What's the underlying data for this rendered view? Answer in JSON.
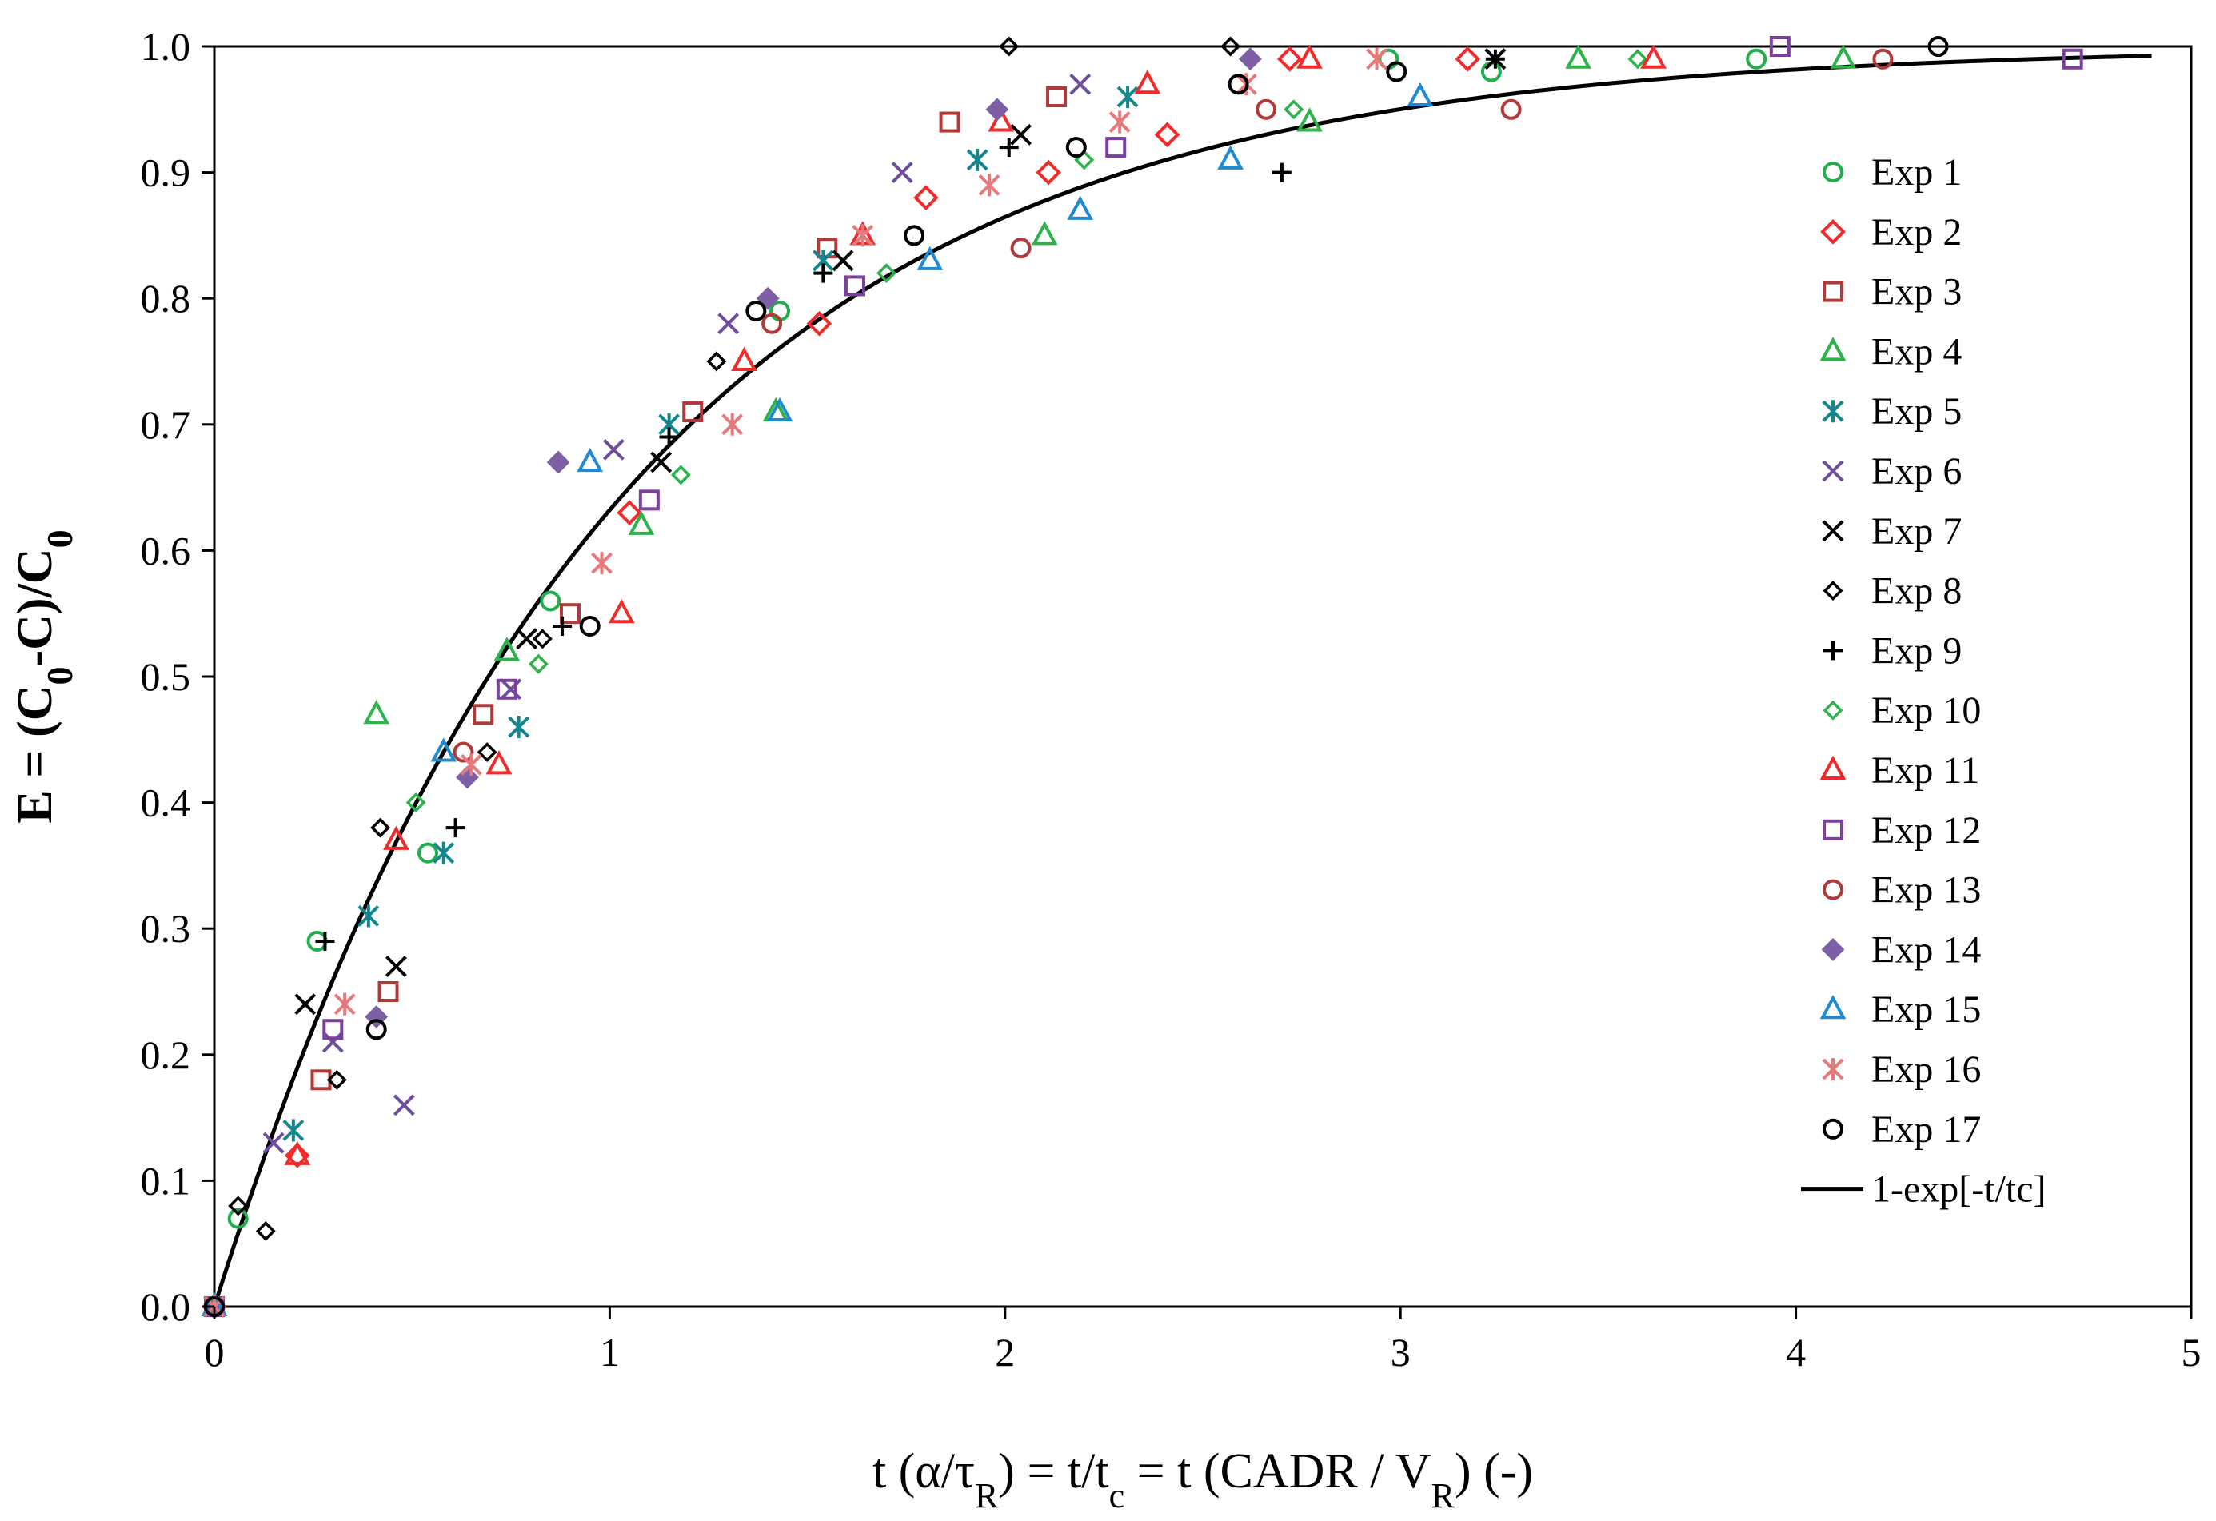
{
  "chart_data": {
    "type": "scatter",
    "title": "",
    "xlabel": "t (α/τR) = t/tc = t (CADR / VR) (-)",
    "xlabel_parts": {
      "a": "t (α/τ",
      "b": "R",
      "c": ") = t/t",
      "d": "c",
      "e": " = t (CADR / V",
      "f": "R",
      "g": ") (-)"
    },
    "ylabel": "E = (C0-C)/C0",
    "ylabel_parts": {
      "a": "E = (C",
      "b": "0",
      "c": "-C)/C",
      "d": "0"
    },
    "xlim": [
      0,
      5
    ],
    "ylim": [
      0,
      1.0
    ],
    "xticks": [
      "0",
      "1",
      "2",
      "3",
      "4",
      "5"
    ],
    "yticks": [
      "0.0",
      "0.1",
      "0.2",
      "0.3",
      "0.4",
      "0.5",
      "0.6",
      "0.7",
      "0.8",
      "0.9",
      "1.0"
    ],
    "grid": false,
    "legend_position": "right",
    "fit": {
      "name": "1-exp[-t/tc]",
      "color": "#000000",
      "x_max": 4.9
    },
    "series": [
      {
        "name": "Exp 1",
        "marker": "circle",
        "color": "#1fb04b",
        "points": [
          [
            0,
            0
          ],
          [
            0.06,
            0.07
          ],
          [
            0.26,
            0.29
          ],
          [
            0.54,
            0.36
          ],
          [
            0.85,
            0.56
          ],
          [
            1.43,
            0.79
          ],
          [
            2.97,
            0.99
          ],
          [
            3.23,
            0.98
          ],
          [
            3.9,
            0.99
          ]
        ]
      },
      {
        "name": "Exp 2",
        "marker": "diamond",
        "color": "#f22a2a",
        "points": [
          [
            0,
            0
          ],
          [
            0.21,
            0.12
          ],
          [
            1.05,
            0.63
          ],
          [
            1.53,
            0.78
          ],
          [
            1.8,
            0.88
          ],
          [
            2.11,
            0.9
          ],
          [
            2.41,
            0.93
          ],
          [
            2.72,
            0.99
          ],
          [
            3.17,
            0.99
          ]
        ]
      },
      {
        "name": "Exp 3",
        "marker": "square",
        "color": "#b0393a",
        "points": [
          [
            0,
            0
          ],
          [
            0.27,
            0.18
          ],
          [
            0.44,
            0.25
          ],
          [
            0.68,
            0.47
          ],
          [
            0.9,
            0.55
          ],
          [
            1.21,
            0.71
          ],
          [
            1.55,
            0.84
          ],
          [
            1.86,
            0.94
          ],
          [
            2.13,
            0.96
          ]
        ]
      },
      {
        "name": "Exp 4",
        "marker": "triangle",
        "color": "#2cb34a",
        "points": [
          [
            0,
            0
          ],
          [
            0.41,
            0.47
          ],
          [
            0.74,
            0.52
          ],
          [
            1.08,
            0.62
          ],
          [
            1.42,
            0.71
          ],
          [
            2.1,
            0.85
          ],
          [
            2.77,
            0.94
          ],
          [
            3.45,
            0.99
          ],
          [
            4.12,
            0.99
          ]
        ]
      },
      {
        "name": "Exp 5",
        "marker": "asterisk",
        "color": "#14878e",
        "points": [
          [
            0,
            0
          ],
          [
            0.2,
            0.14
          ],
          [
            0.39,
            0.31
          ],
          [
            0.58,
            0.36
          ],
          [
            0.77,
            0.46
          ],
          [
            1.15,
            0.7
          ],
          [
            1.54,
            0.83
          ],
          [
            1.93,
            0.91
          ],
          [
            2.31,
            0.96
          ]
        ]
      },
      {
        "name": "Exp 6",
        "marker": "x",
        "color": "#6e4e9c",
        "points": [
          [
            0,
            0
          ],
          [
            0.15,
            0.13
          ],
          [
            0.3,
            0.21
          ],
          [
            0.48,
            0.16
          ],
          [
            0.75,
            0.49
          ],
          [
            1.01,
            0.68
          ],
          [
            1.3,
            0.78
          ],
          [
            1.74,
            0.9
          ],
          [
            2.19,
            0.97
          ],
          [
            3.24,
            0.99
          ]
        ]
      },
      {
        "name": "Exp 7",
        "marker": "x",
        "color": "#000000",
        "points": [
          [
            0,
            0
          ],
          [
            0.23,
            0.24
          ],
          [
            0.46,
            0.27
          ],
          [
            0.79,
            0.53
          ],
          [
            1.13,
            0.67
          ],
          [
            1.59,
            0.83
          ],
          [
            2.04,
            0.93
          ],
          [
            3.24,
            0.99
          ]
        ]
      },
      {
        "name": "Exp 8",
        "marker": "diamond-small",
        "color": "#000000",
        "points": [
          [
            0,
            0
          ],
          [
            0.06,
            0.08
          ],
          [
            0.13,
            0.06
          ],
          [
            0.31,
            0.18
          ],
          [
            0.42,
            0.38
          ],
          [
            0.69,
            0.44
          ],
          [
            0.83,
            0.53
          ],
          [
            1.27,
            0.75
          ],
          [
            2.01,
            1.0
          ],
          [
            2.57,
            1.0
          ]
        ]
      },
      {
        "name": "Exp 9",
        "marker": "plus",
        "color": "#000000",
        "points": [
          [
            0,
            0
          ],
          [
            0.28,
            0.29
          ],
          [
            0.61,
            0.38
          ],
          [
            0.88,
            0.54
          ],
          [
            1.15,
            0.69
          ],
          [
            1.54,
            0.82
          ],
          [
            2.01,
            0.92
          ],
          [
            2.7,
            0.9
          ],
          [
            3.24,
            0.99
          ]
        ]
      },
      {
        "name": "Exp 10",
        "marker": "diamond-small",
        "color": "#2cb34a",
        "points": [
          [
            0,
            0
          ],
          [
            0.51,
            0.4
          ],
          [
            0.82,
            0.51
          ],
          [
            1.18,
            0.66
          ],
          [
            1.7,
            0.82
          ],
          [
            2.2,
            0.91
          ],
          [
            2.73,
            0.95
          ],
          [
            3.6,
            0.99
          ]
        ]
      },
      {
        "name": "Exp 11",
        "marker": "triangle",
        "color": "#f22a2a",
        "points": [
          [
            0,
            0
          ],
          [
            0.21,
            0.12
          ],
          [
            0.46,
            0.37
          ],
          [
            0.72,
            0.43
          ],
          [
            1.03,
            0.55
          ],
          [
            1.34,
            0.75
          ],
          [
            1.64,
            0.85
          ],
          [
            1.99,
            0.94
          ],
          [
            2.36,
            0.97
          ],
          [
            2.77,
            0.99
          ],
          [
            3.64,
            0.99
          ]
        ]
      },
      {
        "name": "Exp 12",
        "marker": "square",
        "color": "#7b3fa0",
        "points": [
          [
            0,
            0
          ],
          [
            0.3,
            0.22
          ],
          [
            0.74,
            0.49
          ],
          [
            1.1,
            0.64
          ],
          [
            1.62,
            0.81
          ],
          [
            2.28,
            0.92
          ],
          [
            3.96,
            1.0
          ],
          [
            4.7,
            0.99
          ]
        ]
      },
      {
        "name": "Exp 13",
        "marker": "circle",
        "color": "#b0393a",
        "points": [
          [
            0,
            0
          ],
          [
            0.63,
            0.44
          ],
          [
            1.41,
            0.78
          ],
          [
            2.04,
            0.84
          ],
          [
            2.66,
            0.95
          ],
          [
            3.28,
            0.95
          ],
          [
            4.22,
            0.99
          ]
        ]
      },
      {
        "name": "Exp 14",
        "marker": "diamond-filled",
        "color": "#7d5fa6",
        "points": [
          [
            0,
            0
          ],
          [
            0.41,
            0.23
          ],
          [
            0.64,
            0.42
          ],
          [
            0.87,
            0.67
          ],
          [
            1.4,
            0.8
          ],
          [
            1.98,
            0.95
          ],
          [
            2.62,
            0.99
          ]
        ]
      },
      {
        "name": "Exp 15",
        "marker": "triangle",
        "color": "#1f8ad4",
        "points": [
          [
            0,
            0
          ],
          [
            0.58,
            0.44
          ],
          [
            0.95,
            0.67
          ],
          [
            1.43,
            0.71
          ],
          [
            1.81,
            0.83
          ],
          [
            2.19,
            0.87
          ],
          [
            2.57,
            0.91
          ],
          [
            3.05,
            0.96
          ]
        ]
      },
      {
        "name": "Exp 16",
        "marker": "asterisk",
        "color": "#e8797b",
        "points": [
          [
            0,
            0
          ],
          [
            0.33,
            0.24
          ],
          [
            0.65,
            0.43
          ],
          [
            0.98,
            0.59
          ],
          [
            1.31,
            0.7
          ],
          [
            1.64,
            0.85
          ],
          [
            1.96,
            0.89
          ],
          [
            2.29,
            0.94
          ],
          [
            2.61,
            0.97
          ],
          [
            2.94,
            0.99
          ]
        ]
      },
      {
        "name": "Exp 17",
        "marker": "circle",
        "color": "#000000",
        "points": [
          [
            0,
            0
          ],
          [
            0.41,
            0.22
          ],
          [
            0.95,
            0.54
          ],
          [
            1.37,
            0.79
          ],
          [
            1.77,
            0.85
          ],
          [
            2.18,
            0.92
          ],
          [
            2.59,
            0.97
          ],
          [
            2.99,
            0.98
          ],
          [
            4.36,
            1.0
          ]
        ]
      }
    ]
  }
}
